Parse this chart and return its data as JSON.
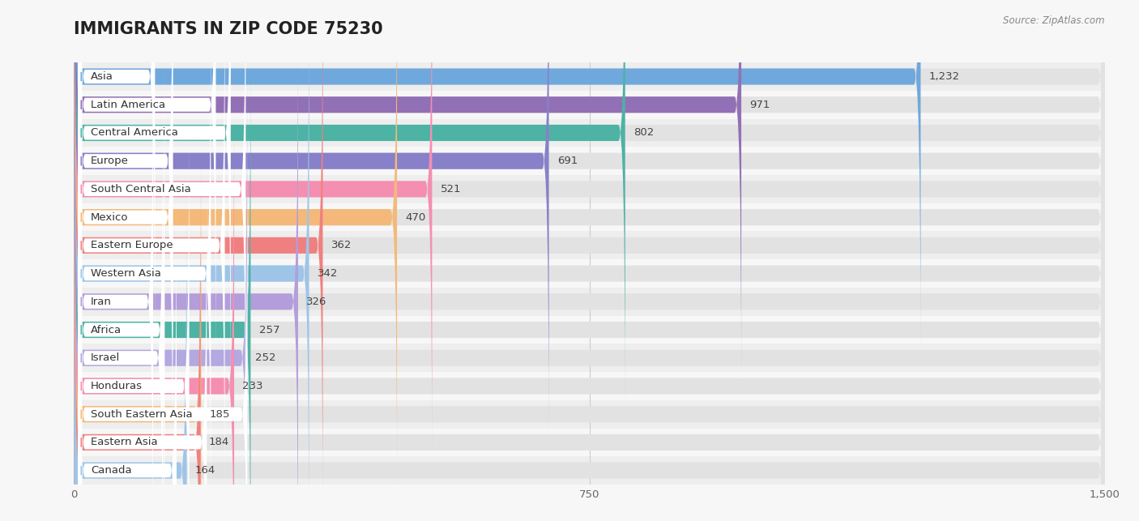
{
  "title": "IMMIGRANTS IN ZIP CODE 75230",
  "source": "Source: ZipAtlas.com",
  "categories": [
    "Asia",
    "Latin America",
    "Central America",
    "Europe",
    "South Central Asia",
    "Mexico",
    "Eastern Europe",
    "Western Asia",
    "Iran",
    "Africa",
    "Israel",
    "Honduras",
    "South Eastern Asia",
    "Eastern Asia",
    "Canada"
  ],
  "values": [
    1232,
    971,
    802,
    691,
    521,
    470,
    362,
    342,
    326,
    257,
    252,
    233,
    185,
    184,
    164
  ],
  "bar_colors": [
    "#6fa8dc",
    "#9270b5",
    "#4db3a4",
    "#8880c8",
    "#f48fb1",
    "#f4b97a",
    "#f08080",
    "#9ec5e8",
    "#b39ddb",
    "#4db3a4",
    "#b3a8e0",
    "#f48fb1",
    "#f4b97a",
    "#f08080",
    "#9ec5e8"
  ],
  "xlim_max": 1500,
  "xticks": [
    0,
    750,
    1500
  ],
  "background_color": "#f7f7f7",
  "row_alt_color": "#eeeeee",
  "bar_bg_color": "#e2e2e2",
  "title_fontsize": 15,
  "value_fontsize": 9.5,
  "label_fontsize": 9.5,
  "bar_height": 0.58
}
